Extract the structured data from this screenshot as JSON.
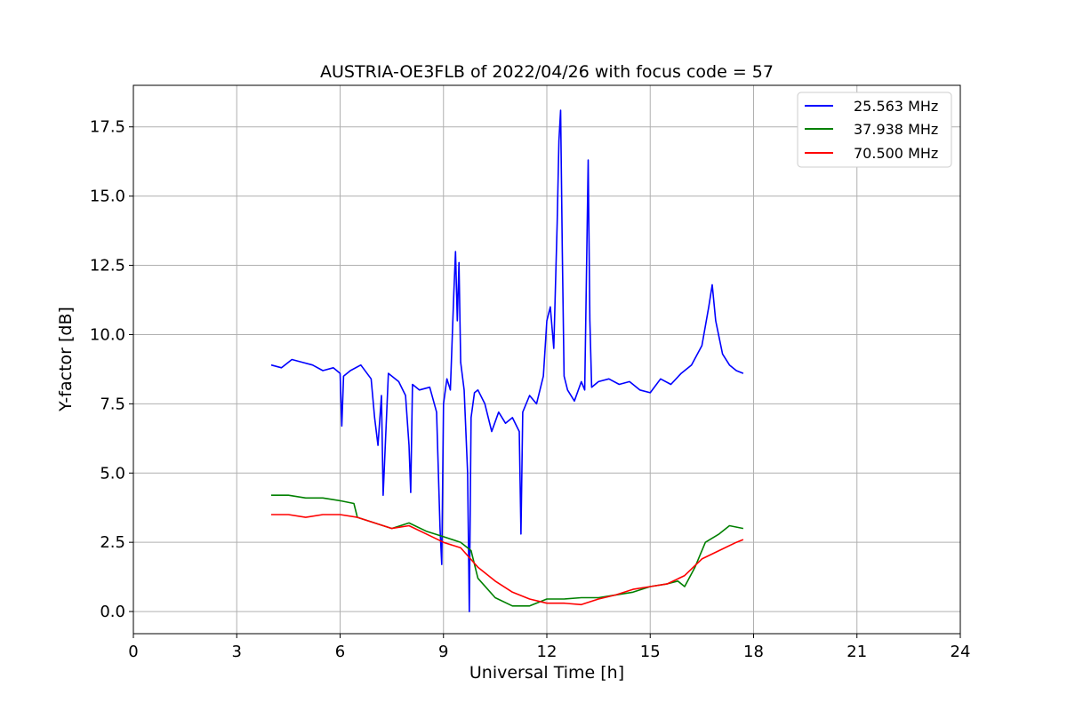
{
  "chart_data": {
    "type": "line",
    "title": "AUSTRIA-OE3FLB of 2022/04/26 with focus code = 57",
    "xlabel": "Universal Time [h]",
    "ylabel": "Y-factor [dB]",
    "xlim": [
      0,
      24
    ],
    "ylim": [
      -0.8,
      19.0
    ],
    "xticks": [
      0,
      3,
      6,
      9,
      12,
      15,
      18,
      21,
      24
    ],
    "xtick_labels": [
      "0",
      "3",
      "6",
      "9",
      "12",
      "15",
      "18",
      "21",
      "24"
    ],
    "yticks": [
      0.0,
      2.5,
      5.0,
      7.5,
      10.0,
      12.5,
      15.0,
      17.5
    ],
    "ytick_labels": [
      "0.0",
      "2.5",
      "5.0",
      "7.5",
      "10.0",
      "12.5",
      "15.0",
      "17.5"
    ],
    "grid": true,
    "legend_position": "top-right",
    "series": [
      {
        "name": "25.563 MHz",
        "color": "#0000ff",
        "x": [
          4.0,
          4.3,
          4.6,
          4.9,
          5.2,
          5.5,
          5.8,
          6.0,
          6.05,
          6.1,
          6.3,
          6.6,
          6.9,
          7.0,
          7.1,
          7.2,
          7.25,
          7.4,
          7.7,
          7.9,
          8.0,
          8.05,
          8.1,
          8.3,
          8.6,
          8.8,
          8.9,
          8.95,
          9.0,
          9.1,
          9.2,
          9.3,
          9.35,
          9.4,
          9.45,
          9.5,
          9.6,
          9.7,
          9.75,
          9.8,
          9.9,
          10.0,
          10.2,
          10.4,
          10.6,
          10.8,
          11.0,
          11.2,
          11.25,
          11.3,
          11.5,
          11.7,
          11.9,
          12.0,
          12.1,
          12.2,
          12.3,
          12.35,
          12.4,
          12.45,
          12.5,
          12.6,
          12.8,
          13.0,
          13.1,
          13.2,
          13.25,
          13.3,
          13.5,
          13.8,
          14.1,
          14.4,
          14.7,
          15.0,
          15.3,
          15.6,
          15.9,
          16.2,
          16.5,
          16.7,
          16.8,
          16.9,
          17.1,
          17.3,
          17.5,
          17.7
        ],
        "y": [
          8.9,
          8.8,
          9.1,
          9.0,
          8.9,
          8.7,
          8.8,
          8.6,
          6.7,
          8.5,
          8.7,
          8.9,
          8.4,
          7.0,
          6.0,
          7.8,
          4.2,
          8.6,
          8.3,
          7.8,
          6.0,
          4.3,
          8.2,
          8.0,
          8.1,
          7.2,
          3.0,
          1.7,
          7.5,
          8.4,
          8.0,
          11.5,
          13.0,
          10.5,
          12.6,
          9.0,
          8.0,
          5.0,
          0.0,
          7.0,
          7.9,
          8.0,
          7.5,
          6.5,
          7.2,
          6.8,
          7.0,
          6.5,
          2.8,
          7.2,
          7.8,
          7.5,
          8.5,
          10.5,
          11.0,
          9.5,
          14.0,
          17.0,
          18.1,
          13.0,
          8.5,
          8.0,
          7.6,
          8.3,
          8.0,
          16.3,
          10.5,
          8.1,
          8.3,
          8.4,
          8.2,
          8.3,
          8.0,
          7.9,
          8.4,
          8.2,
          8.6,
          8.9,
          9.6,
          11.0,
          11.8,
          10.5,
          9.3,
          8.9,
          8.7,
          8.6
        ]
      },
      {
        "name": "37.938 MHz",
        "color": "#008000",
        "x": [
          4.0,
          4.5,
          5.0,
          5.5,
          6.0,
          6.4,
          6.5,
          7.0,
          7.5,
          8.0,
          8.5,
          9.0,
          9.5,
          9.8,
          10.0,
          10.5,
          11.0,
          11.5,
          12.0,
          12.5,
          13.0,
          13.5,
          14.0,
          14.5,
          15.0,
          15.5,
          15.8,
          16.0,
          16.3,
          16.6,
          17.0,
          17.3,
          17.7
        ],
        "y": [
          4.2,
          4.2,
          4.1,
          4.1,
          4.0,
          3.9,
          3.4,
          3.2,
          3.0,
          3.2,
          2.9,
          2.7,
          2.5,
          2.2,
          1.2,
          0.5,
          0.2,
          0.2,
          0.45,
          0.45,
          0.5,
          0.5,
          0.6,
          0.7,
          0.9,
          1.0,
          1.1,
          0.9,
          1.6,
          2.5,
          2.8,
          3.1,
          3.0
        ]
      },
      {
        "name": "70.500 MHz",
        "color": "#ff0000",
        "x": [
          4.0,
          4.5,
          5.0,
          5.5,
          6.0,
          6.5,
          7.0,
          7.5,
          8.0,
          8.5,
          9.0,
          9.5,
          10.0,
          10.5,
          11.0,
          11.5,
          12.0,
          12.5,
          13.0,
          13.5,
          14.0,
          14.5,
          15.0,
          15.5,
          16.0,
          16.5,
          17.0,
          17.5,
          17.7
        ],
        "y": [
          3.5,
          3.5,
          3.4,
          3.5,
          3.5,
          3.4,
          3.2,
          3.0,
          3.1,
          2.8,
          2.5,
          2.3,
          1.6,
          1.1,
          0.7,
          0.45,
          0.3,
          0.3,
          0.25,
          0.45,
          0.6,
          0.8,
          0.9,
          1.0,
          1.3,
          1.9,
          2.2,
          2.5,
          2.6
        ]
      }
    ]
  }
}
